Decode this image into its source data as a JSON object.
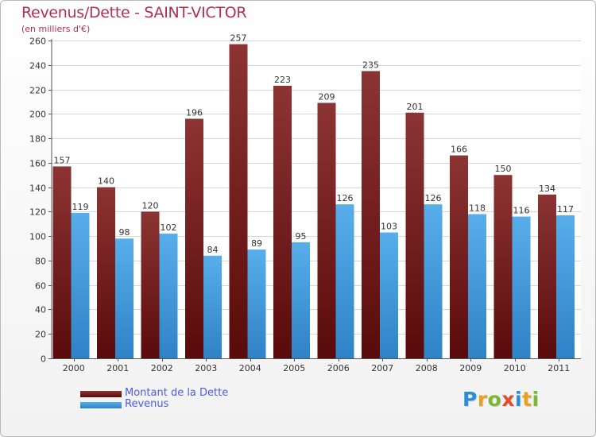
{
  "chart_data": {
    "type": "bar",
    "title": "Revenus/Dette - SAINT-VICTOR",
    "subtitle": "(en milliers d'€)",
    "categories": [
      "2000",
      "2001",
      "2002",
      "2003",
      "2004",
      "2005",
      "2006",
      "2007",
      "2008",
      "2009",
      "2010",
      "2011"
    ],
    "series": [
      {
        "name": "Montant de la Dette",
        "values": [
          157,
          140,
          120,
          196,
          257,
          223,
          209,
          235,
          201,
          166,
          150,
          134
        ],
        "color_light": "#8c3434",
        "color_dark": "#5a0a0a"
      },
      {
        "name": "Revenus",
        "values": [
          119,
          98,
          102,
          84,
          89,
          95,
          126,
          103,
          126,
          118,
          116,
          117
        ],
        "color_light": "#58aeea",
        "color_dark": "#2e82c6"
      }
    ],
    "ylim": [
      0,
      260
    ],
    "yticks": [
      0,
      20,
      40,
      60,
      80,
      100,
      120,
      140,
      160,
      180,
      200,
      220,
      240,
      260
    ],
    "grid": true,
    "legend_position": "bottom-left"
  },
  "logo": {
    "text": "Proxiti",
    "colors": [
      "#2a8fd8",
      "#e8a020",
      "#7ab830",
      "#e84a2a",
      "#2a8fd8",
      "#e8a020",
      "#7ab830"
    ]
  }
}
